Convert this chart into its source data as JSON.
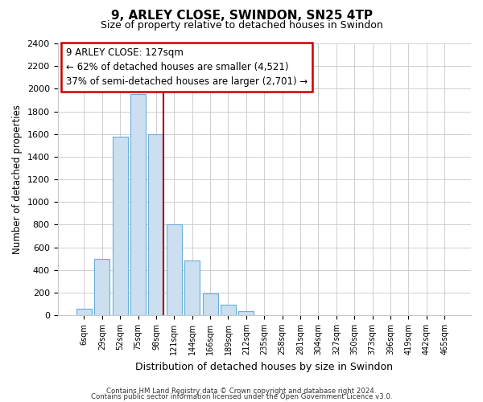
{
  "title": "9, ARLEY CLOSE, SWINDON, SN25 4TP",
  "subtitle": "Size of property relative to detached houses in Swindon",
  "xlabel": "Distribution of detached houses by size in Swindon",
  "ylabel": "Number of detached properties",
  "bar_labels": [
    "6sqm",
    "29sqm",
    "52sqm",
    "75sqm",
    "98sqm",
    "121sqm",
    "144sqm",
    "166sqm",
    "189sqm",
    "212sqm",
    "235sqm",
    "258sqm",
    "281sqm",
    "304sqm",
    "327sqm",
    "350sqm",
    "373sqm",
    "396sqm",
    "419sqm",
    "442sqm",
    "465sqm"
  ],
  "bar_values": [
    55,
    500,
    1580,
    1950,
    1600,
    800,
    480,
    190,
    95,
    35,
    0,
    0,
    0,
    0,
    0,
    0,
    0,
    0,
    0,
    0,
    0
  ],
  "bar_color": "#ccdff0",
  "bar_edge_color": "#6aaed6",
  "marker_color": "#aa0000",
  "annotation_title": "9 ARLEY CLOSE: 127sqm",
  "annotation_line1": "← 62% of detached houses are smaller (4,521)",
  "annotation_line2": "37% of semi-detached houses are larger (2,701) →",
  "ylim": [
    0,
    2400
  ],
  "yticks": [
    0,
    200,
    400,
    600,
    800,
    1000,
    1200,
    1400,
    1600,
    1800,
    2000,
    2200,
    2400
  ],
  "footer1": "Contains HM Land Registry data © Crown copyright and database right 2024.",
  "footer2": "Contains public sector information licensed under the Open Government Licence v3.0.",
  "background_color": "#ffffff",
  "grid_color": "#c8c8c8",
  "annotation_box_color": "#cc0000"
}
